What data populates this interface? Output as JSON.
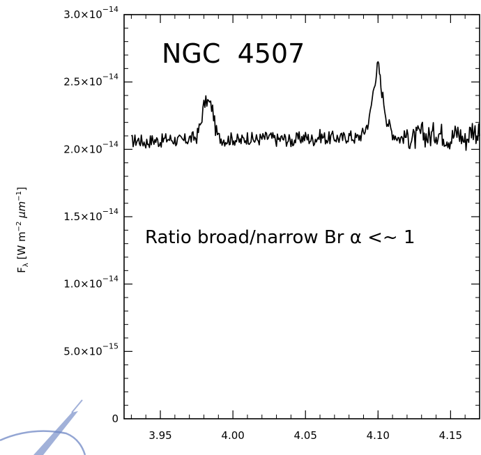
{
  "chart_data": {
    "type": "line",
    "title": "NGC  4507",
    "annotation": "Ratio broad/narrow Br α <~ 1",
    "ylabel": "F_λ [W m^-2 μm^-1]",
    "xlabel": "",
    "xlim": [
      3.925,
      4.17
    ],
    "ylim": [
      0,
      3e-14
    ],
    "x_ticks": [
      "3.95",
      "4.00",
      "4.05",
      "4.10",
      "4.15"
    ],
    "y_ticks": [
      {
        "mant": "0",
        "exp": ""
      },
      {
        "mant": "5.0×10",
        "exp": "−15"
      },
      {
        "mant": "1.0×10",
        "exp": "−14"
      },
      {
        "mant": "1.5×10",
        "exp": "−14"
      },
      {
        "mant": "2.0×10",
        "exp": "−14"
      },
      {
        "mant": "2.5×10",
        "exp": "−14"
      },
      {
        "mant": "3.0×10",
        "exp": "−14"
      }
    ],
    "grid": false,
    "series": [
      {
        "x": [
          3.93,
          3.935,
          3.94,
          3.945,
          3.95,
          3.955,
          3.96,
          3.965,
          3.97,
          3.975,
          3.978,
          3.98,
          3.982,
          3.984,
          3.986,
          3.988,
          3.99,
          3.995,
          4.0,
          4.005,
          4.01,
          4.015,
          4.02,
          4.025,
          4.03,
          4.035,
          4.04,
          4.045,
          4.05,
          4.055,
          4.06,
          4.065,
          4.07,
          4.075,
          4.08,
          4.085,
          4.09,
          4.094,
          4.096,
          4.098,
          4.099,
          4.1,
          4.101,
          4.102,
          4.104,
          4.106,
          4.11,
          4.115,
          4.12,
          4.125,
          4.13,
          4.135,
          4.14,
          4.145,
          4.15,
          4.155,
          4.16,
          4.165,
          4.17
        ],
        "y": [
          2.06e-14,
          2.07e-14,
          2.05e-14,
          2.07e-14,
          2.06e-14,
          2.08e-14,
          2.07e-14,
          2.06e-14,
          2.08e-14,
          2.09e-14,
          2.2e-14,
          2.33e-14,
          2.36e-14,
          2.34e-14,
          2.3e-14,
          2.15e-14,
          2.09e-14,
          2.07e-14,
          2.08e-14,
          2.06e-14,
          2.09e-14,
          2.07e-14,
          2.08e-14,
          2.09e-14,
          2.07e-14,
          2.08e-14,
          2.06e-14,
          2.08e-14,
          2.09e-14,
          2.07e-14,
          2.1e-14,
          2.08e-14,
          2.09e-14,
          2.08e-14,
          2.1e-14,
          2.08e-14,
          2.12e-14,
          2.22e-14,
          2.38e-14,
          2.52e-14,
          2.58e-14,
          2.63e-14,
          2.57e-14,
          2.47e-14,
          2.35e-14,
          2.22e-14,
          2.12e-14,
          2.08e-14,
          2.1e-14,
          2.07e-14,
          2.12e-14,
          2.09e-14,
          2.13e-14,
          2.11e-14,
          2.08e-14,
          2.13e-14,
          2.06e-14,
          2.16e-14,
          2.1e-14
        ]
      }
    ],
    "colors": {
      "line": "#000000",
      "axes": "#000000",
      "logo": "#6f87c4"
    }
  }
}
